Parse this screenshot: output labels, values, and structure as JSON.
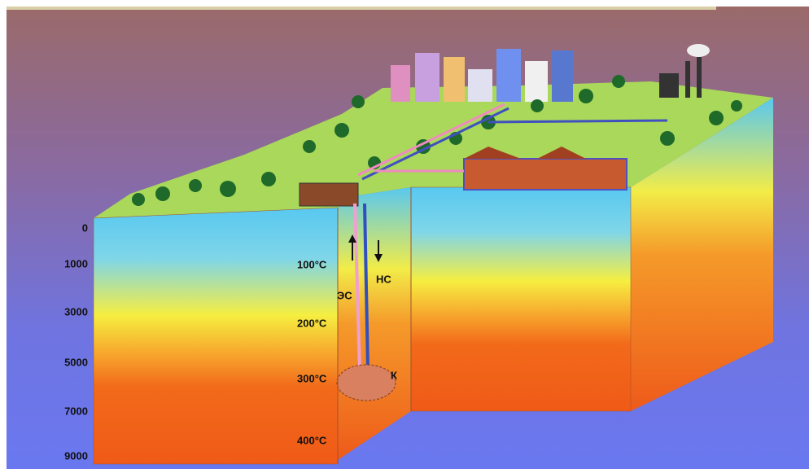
{
  "depth_labels": [
    "0",
    "1000",
    "3000",
    "5000",
    "7000",
    "9000"
  ],
  "temperature_labels": [
    "100°C",
    "200°C",
    "300°C",
    "400°C"
  ],
  "well_labels": {
    "injection": "ЭС",
    "production": "НС",
    "reservoir": "К"
  }
}
